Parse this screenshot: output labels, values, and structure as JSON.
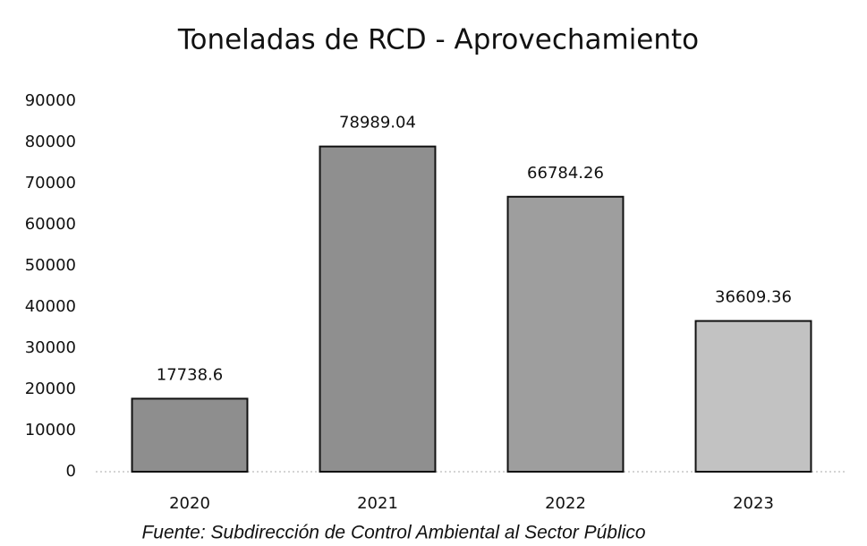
{
  "chart_data": {
    "type": "bar",
    "title": "Toneladas de RCD - Aprovechamiento",
    "categories": [
      "2020",
      "2021",
      "2022",
      "2023"
    ],
    "values": [
      17738.6,
      78989.04,
      66784.26,
      36609.36
    ],
    "colors": [
      "#8e8e8e",
      "#8f8f8f",
      "#9e9e9e",
      "#c2c2c2"
    ],
    "ylim": [
      0,
      90000
    ],
    "yticks": [
      0,
      10000,
      20000,
      30000,
      40000,
      50000,
      60000,
      70000,
      80000,
      90000
    ],
    "grid": false,
    "source": "Fuente: Subdirección de Control Ambiental al Sector Público"
  }
}
